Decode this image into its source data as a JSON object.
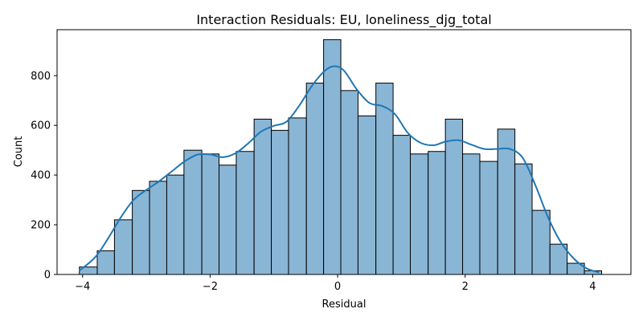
{
  "chart_data": {
    "type": "bar",
    "subtype": "histogram",
    "title": "Interaction Residuals: EU, loneliness_djg_total",
    "xlabel": "Residual",
    "ylabel": "Count",
    "xlim": [
      -4.4,
      4.6
    ],
    "ylim": [
      0,
      985
    ],
    "x_ticks": [
      -4,
      -2,
      0,
      2,
      4
    ],
    "x_tick_labels": [
      "−4",
      "−2",
      "0",
      "2",
      "4"
    ],
    "y_ticks": [
      0,
      200,
      400,
      600,
      800
    ],
    "y_tick_labels": [
      "0",
      "200",
      "400",
      "600",
      "800"
    ],
    "bin_edges": [
      -4.05,
      -3.77,
      -3.5,
      -3.22,
      -2.95,
      -2.68,
      -2.41,
      -2.13,
      -1.86,
      -1.59,
      -1.31,
      -1.04,
      -0.77,
      -0.49,
      -0.22,
      0.05,
      0.32,
      0.6,
      0.87,
      1.14,
      1.42,
      1.69,
      1.96,
      2.23,
      2.51,
      2.78,
      3.05,
      3.33,
      3.6,
      3.87,
      4.14
    ],
    "counts": [
      30,
      95,
      220,
      338,
      375,
      400,
      500,
      485,
      440,
      495,
      625,
      580,
      630,
      770,
      945,
      740,
      638,
      770,
      560,
      485,
      495,
      625,
      485,
      455,
      585,
      445,
      258,
      122,
      45,
      15
    ],
    "kde": {
      "x": [
        -4.05,
        -3.8,
        -3.6,
        -3.4,
        -3.2,
        -3.0,
        -2.8,
        -2.6,
        -2.4,
        -2.2,
        -2.0,
        -1.8,
        -1.6,
        -1.4,
        -1.2,
        -1.0,
        -0.8,
        -0.6,
        -0.4,
        -0.2,
        -0.05,
        0.1,
        0.3,
        0.5,
        0.7,
        0.9,
        1.1,
        1.3,
        1.5,
        1.7,
        1.9,
        2.1,
        2.3,
        2.5,
        2.7,
        2.9,
        3.1,
        3.3,
        3.5,
        3.7,
        3.9,
        4.1
      ],
      "y": [
        15,
        70,
        145,
        230,
        300,
        340,
        375,
        415,
        455,
        482,
        483,
        472,
        488,
        528,
        575,
        598,
        615,
        680,
        760,
        820,
        838,
        820,
        745,
        690,
        678,
        645,
        570,
        530,
        520,
        535,
        540,
        522,
        505,
        505,
        505,
        470,
        360,
        230,
        130,
        65,
        25,
        8
      ]
    },
    "grid": false,
    "legend": "none",
    "colors": {
      "bar_fill": "#8ab6d6",
      "bar_edge": "#000000",
      "kde_line": "#1f77b4"
    }
  }
}
